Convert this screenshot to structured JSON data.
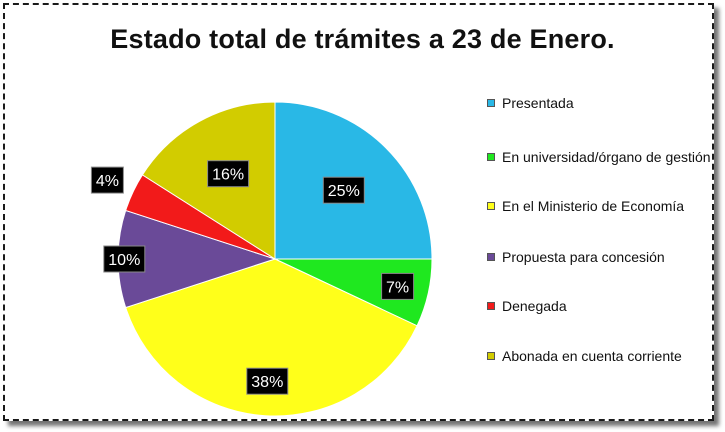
{
  "chart_data": {
    "type": "pie",
    "title": "Estado total de trámites a 23 de Enero.",
    "categories": [
      "Presentada",
      "En universidad/órgano de gestión",
      "En el Ministerio de Economía",
      "Propuesta para concesión",
      "Denegada",
      "Abonada en cuenta corriente"
    ],
    "values": [
      25,
      7,
      38,
      10,
      4,
      16
    ],
    "data_labels": [
      "25%",
      "7%",
      "38%",
      "10%",
      "4%",
      "16%"
    ],
    "colors": [
      "#29b8e6",
      "#1fe81f",
      "#ffff1a",
      "#6a4a98",
      "#f21a1a",
      "#d2cc00"
    ],
    "legend_position": "right",
    "start": "top, clockwise"
  }
}
